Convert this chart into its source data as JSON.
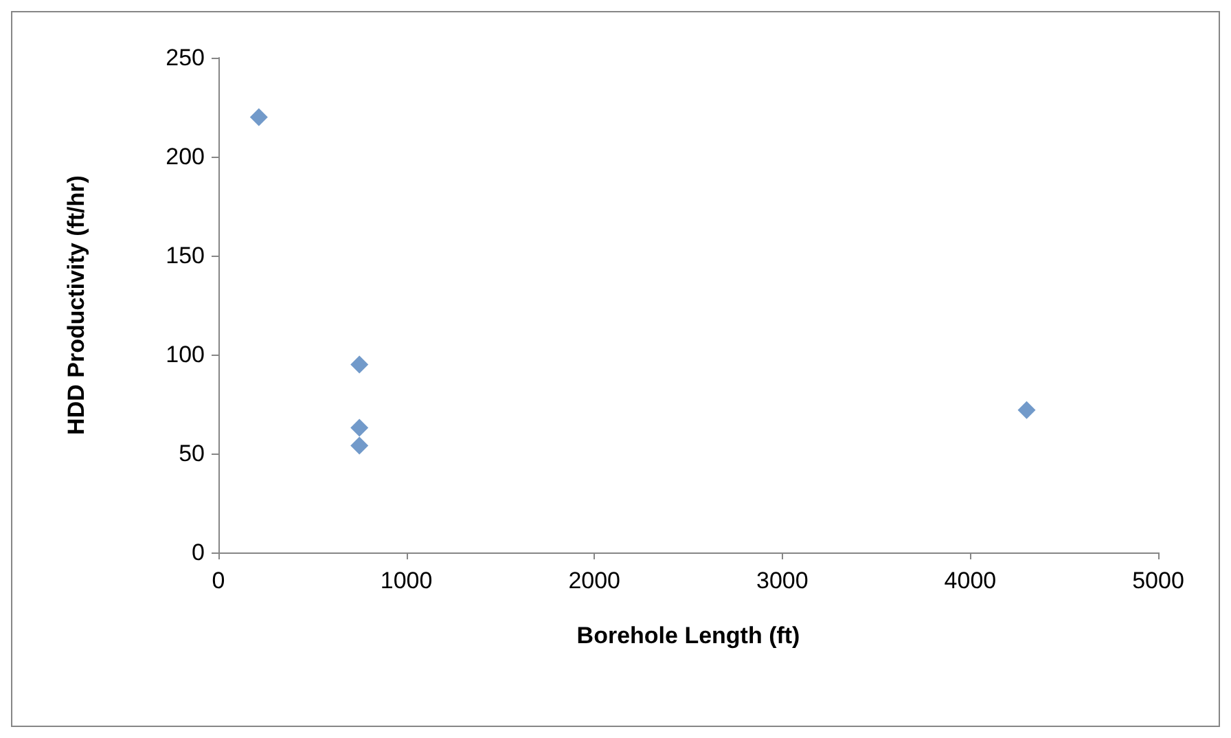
{
  "chart_data": {
    "type": "scatter",
    "xlabel": "Borehole Length (ft)",
    "ylabel": "HDD Productivity (ft/hr)",
    "x": [
      215,
      750,
      750,
      750,
      4300
    ],
    "values": [
      220,
      95,
      63,
      54,
      72
    ],
    "color": "#4f81bd",
    "marker": "diamond",
    "grid": false,
    "xlim": [
      0,
      5000
    ],
    "xticks": [
      0,
      1000,
      2000,
      3000,
      4000,
      5000
    ],
    "ylim": [
      0,
      250
    ],
    "yticks": [
      0,
      50,
      100,
      150,
      200,
      250
    ]
  }
}
